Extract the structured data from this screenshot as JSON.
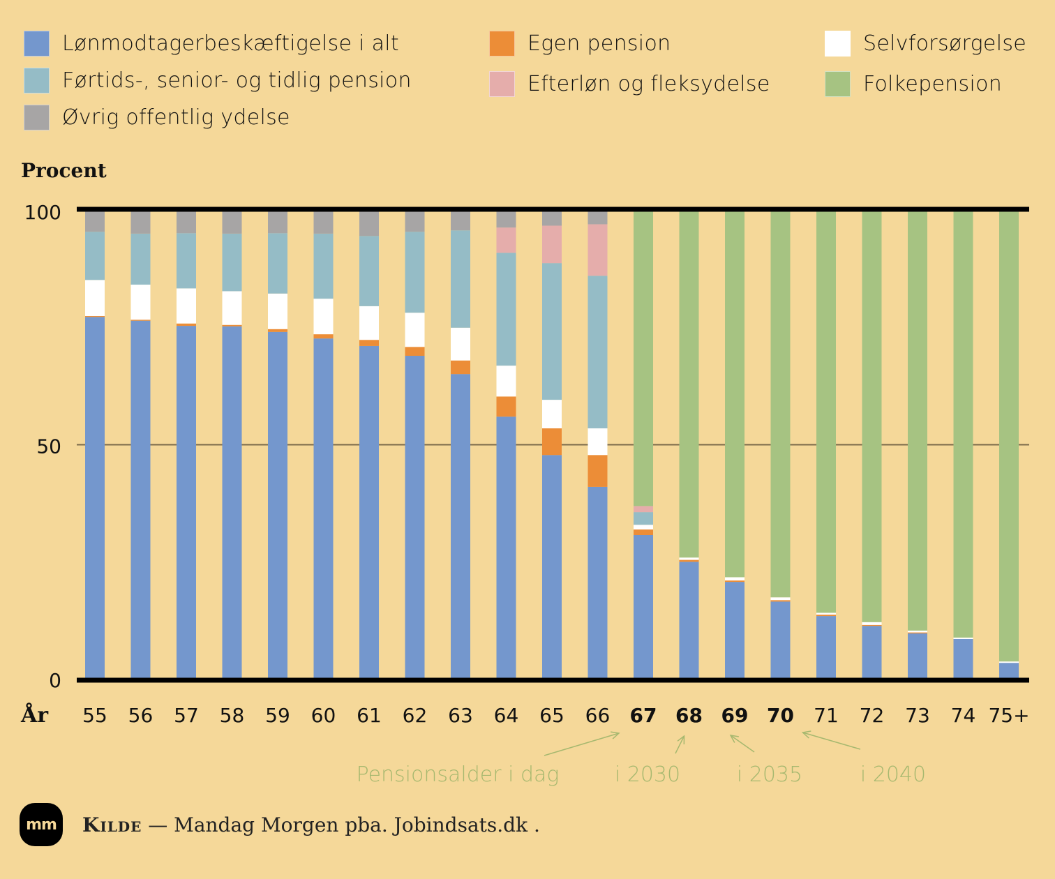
{
  "chart_data": {
    "type": "bar",
    "stacked": true,
    "title": "",
    "ylabel": "Procent",
    "xlabel": "År",
    "ylim": [
      0,
      100
    ],
    "yticks": [
      0,
      50,
      100
    ],
    "grid": true,
    "legend_position": "top",
    "categories": [
      "55",
      "56",
      "57",
      "58",
      "59",
      "60",
      "61",
      "62",
      "63",
      "64",
      "65",
      "66",
      "67",
      "68",
      "69",
      "70",
      "71",
      "72",
      "73",
      "74",
      "75+"
    ],
    "bold_categories": [
      "67",
      "68",
      "69",
      "70"
    ],
    "series": [
      {
        "name": "Lønmodtagerbeskæftigelse i alt",
        "color": "#7497cd",
        "values": [
          77.3,
          76.5,
          75.4,
          75.3,
          74.1,
          72.7,
          71.1,
          69.0,
          65.1,
          56.0,
          47.8,
          41.0,
          30.7,
          25.0,
          20.7,
          16.5,
          13.4,
          11.3,
          9.7,
          8.5,
          3.4
        ]
      },
      {
        "name": "Egen pension",
        "color": "#ec8d37",
        "values": [
          0.2,
          0.2,
          0.5,
          0.3,
          0.6,
          0.9,
          1.3,
          1.9,
          2.9,
          4.3,
          5.7,
          6.8,
          1.2,
          0.4,
          0.3,
          0.3,
          0.3,
          0.2,
          0.2,
          0.0,
          0.0
        ]
      },
      {
        "name": "Selvforsørgelse",
        "color": "#ffffff",
        "values": [
          7.7,
          7.5,
          7.5,
          7.2,
          7.6,
          7.6,
          7.2,
          7.3,
          7.0,
          6.6,
          6.1,
          5.7,
          1.0,
          0.5,
          0.7,
          0.6,
          0.4,
          0.6,
          0.4,
          0.3,
          0.3
        ]
      },
      {
        "name": "Førtids-, senior- og tidlig pension",
        "color": "#95bcc6",
        "values": [
          10.3,
          10.9,
          11.8,
          12.3,
          12.9,
          13.9,
          15.0,
          17.3,
          20.8,
          24.1,
          29.2,
          32.6,
          2.7,
          0,
          0,
          0,
          0,
          0,
          0,
          0,
          0
        ]
      },
      {
        "name": "Efterløn og fleksydelse",
        "color": "#e5adab",
        "values": [
          0,
          0,
          0,
          0,
          0,
          0,
          0,
          0,
          0,
          5.4,
          8.0,
          11.0,
          1.3,
          0,
          0,
          0,
          0,
          0,
          0,
          0,
          0
        ]
      },
      {
        "name": "Folkepension",
        "color": "#a6c382",
        "values": [
          0,
          0,
          0,
          0,
          0,
          0,
          0,
          0,
          0,
          0,
          0,
          0,
          63.1,
          74.1,
          78.3,
          82.6,
          85.9,
          87.9,
          89.7,
          91.2,
          96.3
        ]
      },
      {
        "name": "Øvrig offentlig ydelse",
        "color": "#a7a5a5",
        "values": [
          4.5,
          4.9,
          4.8,
          4.9,
          4.8,
          4.9,
          5.4,
          4.5,
          4.2,
          3.6,
          3.2,
          2.9,
          0,
          0,
          0,
          0,
          0,
          0,
          0,
          0,
          0
        ]
      }
    ],
    "annotations": [
      {
        "text": "Pensionsalder i dag",
        "points_to": "67"
      },
      {
        "text": "i 2030",
        "points_to": "68"
      },
      {
        "text": "i 2035",
        "points_to": "69"
      },
      {
        "text": "i 2040",
        "points_to": "70"
      }
    ]
  },
  "legend": [
    {
      "label": "Lønmodtagerbeskæftigelse i alt",
      "color": "#7497cd"
    },
    {
      "label": "Førtids-, senior- og tidlig pension",
      "color": "#95bcc6"
    },
    {
      "label": "Øvrig offentlig ydelse",
      "color": "#a7a5a5"
    },
    {
      "label": "Egen pension",
      "color": "#ec8d37"
    },
    {
      "label": "Efterløn og fleksydelse",
      "color": "#e5adab"
    },
    {
      "label": "Selvforsørgelse",
      "color": "#ffffff"
    },
    {
      "label": "Folkepension",
      "color": "#a6c382"
    }
  ],
  "axis": {
    "y_title": "Procent",
    "x_title": "År",
    "y_tick_labels": [
      "100",
      "50",
      "0"
    ]
  },
  "colors": {
    "background": "#f5d899",
    "annotation": "#a6b86f",
    "axis_line": "#000000",
    "gridline": "#7a6a4a"
  },
  "footer": {
    "logo_text": "mm",
    "source_label": "Kilde",
    "source_dash": "—",
    "source_text": "Mandag Morgen pba. Jobindsats.dk ."
  }
}
